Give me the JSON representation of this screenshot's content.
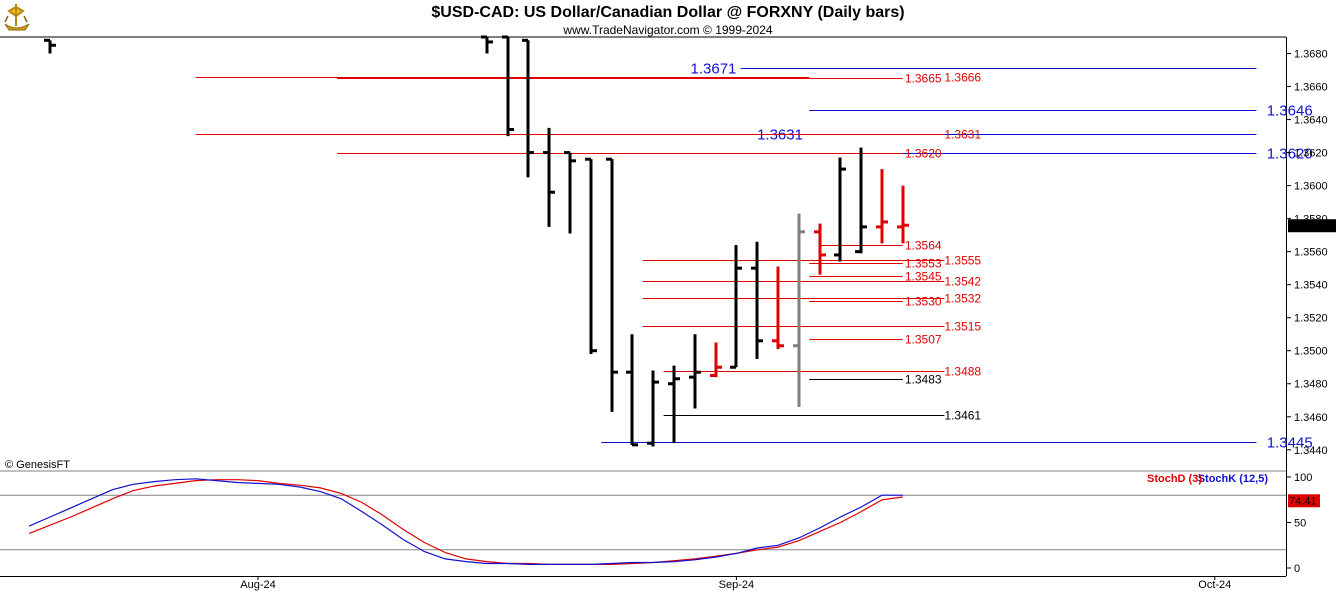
{
  "header": {
    "title": "$USD-CAD:  US Dollar/Canadian Dollar @ FORXNY  (Daily bars)",
    "subtitle": "www.TradeNavigator.com © 1999-2024",
    "logo_icon": "gold-ship-logo-icon"
  },
  "credit": "© GenesisFT",
  "colors": {
    "red": "#e00000",
    "blue": "#1010d0",
    "black": "#000000",
    "gray": "#808080",
    "purple": "#8020a0"
  },
  "chart_data": [
    {
      "type": "ohlc",
      "name": "price",
      "ylim": [
        1.3432,
        1.369
      ],
      "yticks": [
        "1.3680",
        "1.3660",
        "1.3640",
        "1.3620",
        "1.3600",
        "1.3580",
        "1.3560",
        "1.3540",
        "1.3520",
        "1.3500",
        "1.3480",
        "1.3460",
        "1.3440"
      ],
      "xticks": [
        {
          "label": "Aug-24",
          "i": 0
        },
        {
          "label": "Sep-24",
          "i": 23
        },
        {
          "label": "Oct-24",
          "i": 46
        }
      ],
      "last_price": "1.3576",
      "bars": [
        {
          "i": -10,
          "o": 1.3688,
          "h": 1.3688,
          "l": 1.368,
          "c": 1.3685,
          "color": "black"
        },
        {
          "i": 11,
          "o": 1.369,
          "h": 1.369,
          "l": 1.368,
          "c": 1.3687,
          "color": "black"
        },
        {
          "i": 12,
          "o": 1.369,
          "h": 1.369,
          "l": 1.363,
          "c": 1.3634,
          "color": "black"
        },
        {
          "i": 13,
          "o": 1.3688,
          "h": 1.3688,
          "l": 1.3605,
          "c": 1.362,
          "color": "black"
        },
        {
          "i": 14,
          "o": 1.362,
          "h": 1.3635,
          "l": 1.3575,
          "c": 1.3596,
          "color": "black"
        },
        {
          "i": 15,
          "o": 1.362,
          "h": 1.362,
          "l": 1.3571,
          "c": 1.3615,
          "color": "black"
        },
        {
          "i": 16,
          "o": 1.3616,
          "h": 1.3616,
          "l": 1.3498,
          "c": 1.35,
          "color": "black"
        },
        {
          "i": 17,
          "o": 1.3616,
          "h": 1.3616,
          "l": 1.3463,
          "c": 1.3487,
          "color": "black"
        },
        {
          "i": 18,
          "o": 1.3487,
          "h": 1.351,
          "l": 1.3443,
          "c": 1.3443,
          "color": "black"
        },
        {
          "i": 19,
          "o": 1.3444,
          "h": 1.3488,
          "l": 1.3442,
          "c": 1.3481,
          "color": "black"
        },
        {
          "i": 20,
          "o": 1.348,
          "h": 1.3491,
          "l": 1.3444,
          "c": 1.3483,
          "color": "black"
        },
        {
          "i": 21,
          "o": 1.3484,
          "h": 1.351,
          "l": 1.3465,
          "c": 1.3487,
          "color": "black"
        },
        {
          "i": 22,
          "o": 1.3485,
          "h": 1.3505,
          "l": 1.3484,
          "c": 1.349,
          "color": "red"
        },
        {
          "i": 23,
          "o": 1.349,
          "h": 1.3564,
          "l": 1.349,
          "c": 1.355,
          "color": "black"
        },
        {
          "i": 24,
          "o": 1.355,
          "h": 1.3566,
          "l": 1.3495,
          "c": 1.3506,
          "color": "black"
        },
        {
          "i": 25,
          "o": 1.3506,
          "h": 1.3551,
          "l": 1.3501,
          "c": 1.3503,
          "color": "red"
        },
        {
          "i": 26,
          "o": 1.3503,
          "h": 1.3583,
          "l": 1.3466,
          "c": 1.3572,
          "color": "gray"
        },
        {
          "i": 27,
          "o": 1.3572,
          "h": 1.3577,
          "l": 1.3546,
          "c": 1.3558,
          "color": "red"
        },
        {
          "i": 28,
          "o": 1.3558,
          "h": 1.3617,
          "l": 1.3554,
          "c": 1.361,
          "color": "black"
        },
        {
          "i": 29,
          "o": 1.356,
          "h": 1.3623,
          "l": 1.3559,
          "c": 1.3575,
          "color": "black"
        },
        {
          "i": 30,
          "o": 1.3575,
          "h": 1.361,
          "l": 1.3565,
          "c": 1.3578,
          "color": "red"
        },
        {
          "i": 31,
          "o": 1.3575,
          "h": 1.36,
          "l": 1.3565,
          "c": 1.3576,
          "color": "red"
        }
      ],
      "levels": [
        {
          "price": 1.3671,
          "label": "1.3671",
          "color": "blue",
          "start": 23.2,
          "end": 48.0,
          "label_side": "left",
          "label_i": 23.0,
          "big": true
        },
        {
          "price": 1.3666,
          "label": "1.3666",
          "color": "red",
          "start": -3,
          "end": 26.5,
          "label_side": "right",
          "label_i": 33.0
        },
        {
          "price": 1.3665,
          "label": "1.3665",
          "color": "red",
          "start": 3.8,
          "end": 31.0,
          "label_side": "right",
          "label_i": 31.1
        },
        {
          "price": 1.3646,
          "label": "1.3646",
          "color": "blue",
          "start": 26.5,
          "end": 48.0,
          "label_side": "right",
          "label_i": 48.5,
          "big": true
        },
        {
          "price": 1.3631,
          "label": "1.3631",
          "color": "blue",
          "start": 26.5,
          "end": 48.0,
          "label_side": "left",
          "label_i": 26.2,
          "big": true
        },
        {
          "price": 1.3631,
          "label": "1.3631",
          "color": "red",
          "start": -3,
          "end": 33.0,
          "label_side": "right",
          "label_i": 33.0
        },
        {
          "price": 1.362,
          "label": "1.3620",
          "color": "blue",
          "start": 26.5,
          "end": 48.0,
          "label_side": "right",
          "label_i": 48.5,
          "big": true
        },
        {
          "price": 1.362,
          "label": "1.3620",
          "color": "red",
          "start": 3.8,
          "end": 31.0,
          "label_side": "right",
          "label_i": 31.1
        },
        {
          "price": 1.3564,
          "label": "1.3564",
          "color": "red",
          "start": 27.0,
          "end": 31.0,
          "label_side": "right",
          "label_i": 31.1
        },
        {
          "price": 1.3555,
          "label": "1.3555",
          "color": "red",
          "start": 18.5,
          "end": 33.0,
          "label_side": "right",
          "label_i": 33.0
        },
        {
          "price": 1.3553,
          "label": "1.3553",
          "color": "red",
          "start": 26.5,
          "end": 31.0,
          "label_side": "right",
          "label_i": 31.1
        },
        {
          "price": 1.3545,
          "label": "1.3545",
          "color": "red",
          "start": 26.5,
          "end": 31.0,
          "label_side": "right",
          "label_i": 31.1
        },
        {
          "price": 1.3542,
          "label": "1.3542",
          "color": "red",
          "start": 18.5,
          "end": 33.0,
          "label_side": "right",
          "label_i": 33.0
        },
        {
          "price": 1.3532,
          "label": "1.3532",
          "color": "red",
          "start": 18.5,
          "end": 33.0,
          "label_side": "right",
          "label_i": 33.0
        },
        {
          "price": 1.353,
          "label": "1.3530",
          "color": "red",
          "start": 26.5,
          "end": 31.0,
          "label_side": "right",
          "label_i": 31.1
        },
        {
          "price": 1.3515,
          "label": "1.3515",
          "color": "red",
          "start": 18.5,
          "end": 33.0,
          "label_side": "right",
          "label_i": 33.0
        },
        {
          "price": 1.3507,
          "label": "1.3507",
          "color": "red",
          "start": 26.5,
          "end": 31.0,
          "label_side": "right",
          "label_i": 31.1
        },
        {
          "price": 1.3488,
          "label": "1.3488",
          "color": "red",
          "start": 19.5,
          "end": 33.0,
          "label_side": "right",
          "label_i": 33.0
        },
        {
          "price": 1.3483,
          "label": "1.3483",
          "color": "black",
          "start": 26.5,
          "end": 31.0,
          "label_side": "right",
          "label_i": 31.1
        },
        {
          "price": 1.3461,
          "label": "1.3461",
          "color": "black",
          "start": 19.5,
          "end": 33.0,
          "label_side": "right",
          "label_i": 33.0
        },
        {
          "price": 1.3445,
          "label": "1.3445",
          "color": "blue",
          "start": 16.5,
          "end": 48.0,
          "label_side": "right",
          "label_i": 48.5,
          "big": true
        }
      ]
    },
    {
      "type": "line",
      "name": "stochastics",
      "ylim": [
        0,
        100
      ],
      "yticks": [
        "100",
        "50",
        "0"
      ],
      "guides": [
        80,
        20
      ],
      "last_value": "74.41",
      "legend": [
        {
          "name": "StochD (3)",
          "color": "red"
        },
        {
          "name": "StochK (12,5)",
          "color": "blue"
        }
      ],
      "series": [
        {
          "name": "StochD (3)",
          "color": "red",
          "x": [
            -11,
            -10,
            -9,
            -8,
            -7,
            -6,
            -5,
            -4,
            -3,
            -2,
            -1,
            0,
            1,
            2,
            3,
            4,
            5,
            6,
            7,
            8,
            9,
            10,
            11,
            12,
            13,
            14,
            15,
            16,
            17,
            18,
            19,
            20,
            21,
            22,
            23,
            24,
            25,
            26,
            27,
            28,
            29,
            30,
            31
          ],
          "values": [
            38,
            47,
            56,
            66,
            76,
            85,
            90,
            93,
            96,
            97,
            97,
            96,
            93,
            91,
            88,
            82,
            72,
            58,
            42,
            28,
            17,
            10,
            7,
            5,
            5,
            4,
            4,
            4,
            4,
            5,
            6,
            8,
            10,
            13,
            16,
            20,
            23,
            30,
            40,
            50,
            62,
            75,
            78
          ]
        },
        {
          "name": "StochK (12,5)",
          "color": "blue",
          "x": [
            -11,
            -10,
            -9,
            -8,
            -7,
            -6,
            -5,
            -4,
            -3,
            -2,
            -1,
            0,
            1,
            2,
            3,
            4,
            5,
            6,
            7,
            8,
            9,
            10,
            11,
            12,
            13,
            14,
            15,
            16,
            17,
            18,
            19,
            20,
            21,
            22,
            23,
            24,
            25,
            26,
            27,
            28,
            29,
            30,
            31
          ],
          "values": [
            46,
            56,
            66,
            76,
            86,
            92,
            95,
            97,
            98,
            96,
            94,
            93,
            92,
            89,
            84,
            76,
            62,
            47,
            31,
            18,
            10,
            7,
            5,
            5,
            4,
            4,
            4,
            4,
            5,
            6,
            6,
            7,
            9,
            12,
            16,
            22,
            25,
            33,
            44,
            56,
            67,
            80,
            80
          ]
        }
      ]
    }
  ]
}
